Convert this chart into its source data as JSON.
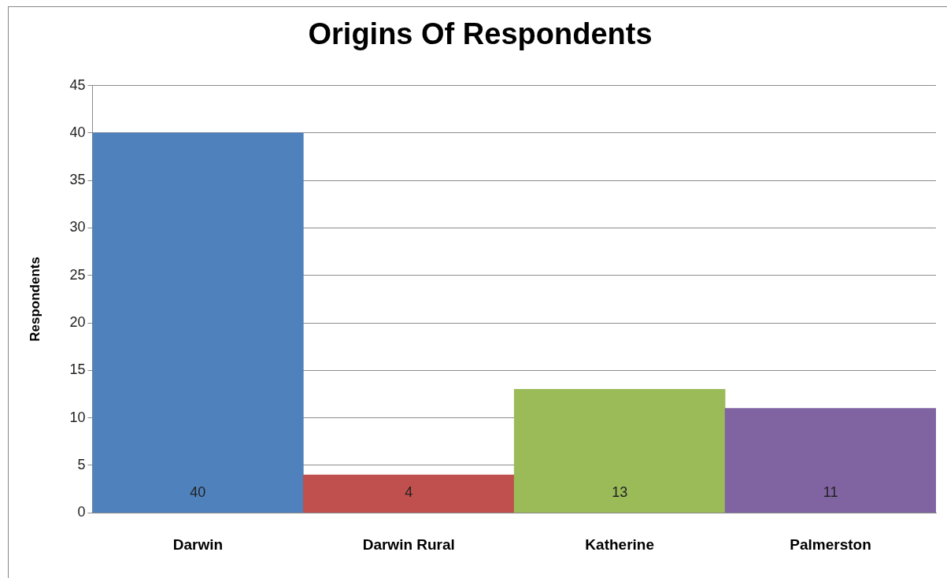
{
  "chart_data": {
    "type": "bar",
    "title": "Origins Of Respondents",
    "ylabel": "Respondents",
    "categories": [
      "Darwin",
      "Darwin Rural",
      "Katherine",
      "Palmerston"
    ],
    "values": [
      40,
      4,
      13,
      11
    ],
    "colors": [
      "#4f81bd",
      "#c0504d",
      "#9bbb59",
      "#8064a2"
    ],
    "ylim": [
      0,
      45
    ],
    "yticks": [
      0,
      5,
      10,
      15,
      20,
      25,
      30,
      35,
      40,
      45
    ],
    "grid": "y",
    "legend": false,
    "data_labels": true
  }
}
